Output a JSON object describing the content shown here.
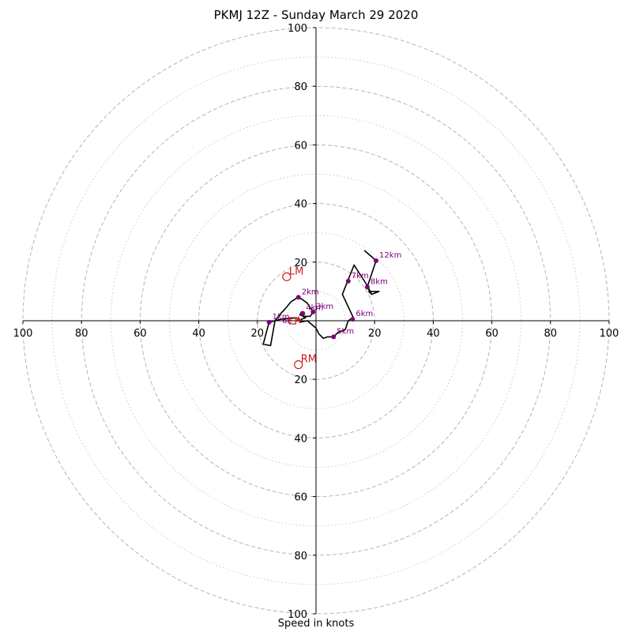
{
  "chart_data": {
    "type": "scatter",
    "title": "PKMJ 12Z - Sunday March 29 2020",
    "xlabel": "Speed in knots",
    "ylabel": "",
    "xlim": [
      -100,
      100
    ],
    "ylim": [
      -100,
      100
    ],
    "grid": true,
    "rings": {
      "major": [
        20,
        40,
        60,
        80,
        100
      ],
      "minor": [
        10,
        30,
        50,
        70,
        90
      ]
    },
    "ticks": {
      "x": [
        {
          "value": -100,
          "label": "100"
        },
        {
          "value": -80,
          "label": "80"
        },
        {
          "value": -60,
          "label": "60"
        },
        {
          "value": -40,
          "label": "40"
        },
        {
          "value": -20,
          "label": "20"
        },
        {
          "value": 20,
          "label": "20"
        },
        {
          "value": 40,
          "label": "40"
        },
        {
          "value": 60,
          "label": "60"
        },
        {
          "value": 80,
          "label": "80"
        },
        {
          "value": 100,
          "label": "100"
        }
      ],
      "y": [
        {
          "value": 100,
          "label": "100"
        },
        {
          "value": 80,
          "label": "80"
        },
        {
          "value": 60,
          "label": "60"
        },
        {
          "value": 40,
          "label": "40"
        },
        {
          "value": 20,
          "label": "20"
        },
        {
          "value": -20,
          "label": "20"
        },
        {
          "value": -40,
          "label": "40"
        },
        {
          "value": -60,
          "label": "60"
        },
        {
          "value": -80,
          "label": "80"
        },
        {
          "value": -100,
          "label": "100"
        }
      ]
    },
    "hodograph": {
      "color": "#000000",
      "points": [
        [
          -6.5,
          1.0
        ],
        [
          -12,
          0.5
        ],
        [
          -16,
          -0.5
        ],
        [
          -18,
          -8
        ],
        [
          -15.5,
          -8.5
        ],
        [
          -14,
          0
        ],
        [
          -12,
          2.5
        ],
        [
          -11,
          3.5
        ],
        [
          -8.5,
          6.5
        ],
        [
          -6.5,
          7.8
        ],
        [
          -5,
          7.5
        ],
        [
          -3,
          6
        ],
        [
          -1,
          3
        ],
        [
          -2,
          1.5
        ],
        [
          -4,
          1.5
        ],
        [
          -5.5,
          2
        ],
        [
          -5,
          3
        ],
        [
          -4,
          2.5
        ],
        [
          -4.5,
          1.5
        ],
        [
          -3.5,
          1
        ],
        [
          -5,
          0.5
        ],
        [
          -5.5,
          -0.5
        ],
        [
          -3,
          0
        ],
        [
          0,
          -2.5
        ],
        [
          1,
          -4.5
        ],
        [
          2.5,
          -6
        ],
        [
          4,
          -5.5
        ],
        [
          6,
          -5.5
        ],
        [
          7.5,
          -4
        ],
        [
          10,
          -3
        ],
        [
          11,
          0
        ],
        [
          12.5,
          1
        ],
        [
          13,
          0.5
        ],
        [
          9,
          9
        ],
        [
          13,
          19
        ],
        [
          17.5,
          12
        ],
        [
          19,
          9
        ],
        [
          21.5,
          10
        ],
        [
          18,
          10
        ],
        [
          19,
          9
        ],
        [
          17.5,
          11.5
        ],
        [
          20.5,
          20.5
        ],
        [
          16.5,
          24
        ]
      ]
    },
    "height_markers": {
      "color": "#800080",
      "points": [
        {
          "label": "1km",
          "x": -16,
          "y": -0.5
        },
        {
          "label": "2km",
          "x": -6,
          "y": 8
        },
        {
          "label": "3km",
          "x": -1,
          "y": 3
        },
        {
          "label": "4km",
          "x": -4.5,
          "y": 2.5
        },
        {
          "label": "5km",
          "x": 6,
          "y": -5.5
        },
        {
          "label": "6km",
          "x": 12.5,
          "y": 0.5
        },
        {
          "label": "7km",
          "x": 11,
          "y": 13.5
        },
        {
          "label": "8km",
          "x": 17.5,
          "y": 11.5
        },
        {
          "label": "12km",
          "x": 20.5,
          "y": 20.5
        }
      ]
    },
    "storm_motion": {
      "color": "#c82020",
      "points": [
        {
          "label": "LM",
          "x": -10,
          "y": 15
        },
        {
          "label": "RM",
          "x": -6,
          "y": -15
        }
      ]
    },
    "extra_markers": {
      "color": "#c82020",
      "square": {
        "x": -8,
        "y": 0
      },
      "triangle": {
        "x": -6,
        "y": 0.5
      }
    },
    "overlap_label": {
      "text": "6E",
      "x": -10.5,
      "y": 0
    }
  }
}
